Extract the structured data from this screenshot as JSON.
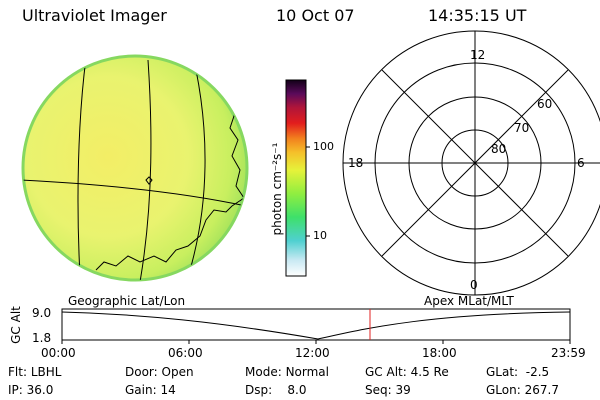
{
  "header": {
    "instrument": "Ultraviolet Imager",
    "date": "10 Oct 07",
    "time": "14:35:15 UT"
  },
  "globe": {
    "label": "Geographic Lat/Lon"
  },
  "colorbar": {
    "unit_label": "photon cm⁻²s⁻¹",
    "ticks": [
      "100",
      "10"
    ]
  },
  "polar": {
    "label": "Apex MLat/MLT",
    "mlt_labels": {
      "top": "12",
      "right": "6",
      "bottom": "0",
      "left": "18"
    },
    "lat_labels": [
      "60",
      "70",
      "80"
    ]
  },
  "altitude_plot": {
    "ylabel": "GC Alt",
    "yticks": [
      "9.0",
      "1.8"
    ],
    "xticks": [
      "00:00",
      "06:00",
      "12:00",
      "18:00",
      "23:59"
    ],
    "current_time_marker": "14:35"
  },
  "status": {
    "row1": [
      {
        "key": "Flt:",
        "value": "LBHL"
      },
      {
        "key": "Door:",
        "value": "Open"
      },
      {
        "key": "Mode:",
        "value": "Normal"
      },
      {
        "key": "GC Alt:",
        "value": "4.5 Re"
      },
      {
        "key": "GLat:",
        "value": "-2.5"
      }
    ],
    "row2": [
      {
        "key": "IP:",
        "value": "36.0"
      },
      {
        "key": "Gain:",
        "value": "14"
      },
      {
        "key": "Dsp:",
        "value": "8.0"
      },
      {
        "key": "Seq:",
        "value": "39"
      },
      {
        "key": "GLon:",
        "value": "267.7"
      }
    ]
  },
  "colors": {
    "globe_fill": "#e8f070",
    "globe_edge": "#9be05a",
    "marker": "#e02020"
  }
}
